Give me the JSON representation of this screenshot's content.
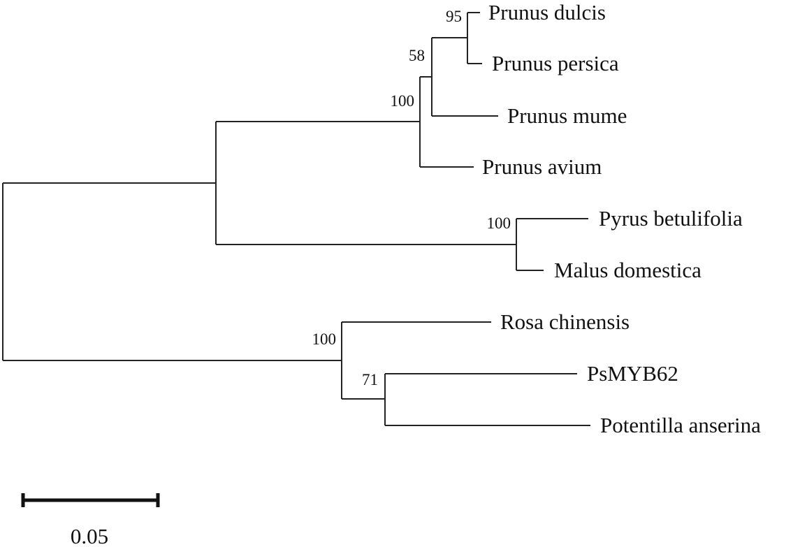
{
  "tree": {
    "taxa": [
      "Prunus dulcis",
      "Prunus persica",
      "Prunus mume",
      "Prunus avium",
      "Pyrus betulifolia",
      "Malus domestica",
      "Rosa chinensis",
      "PsMYB62",
      "Potentilla anserina"
    ],
    "bootstrap": {
      "dulcis_persica": "95",
      "mume_clade": "58",
      "prunus_clade": "100",
      "pyrus_malus": "100",
      "rosa_clade": "100",
      "psmyb_potentilla": "71"
    }
  },
  "scale_bar": {
    "label": "0.05",
    "value": 0.05
  }
}
